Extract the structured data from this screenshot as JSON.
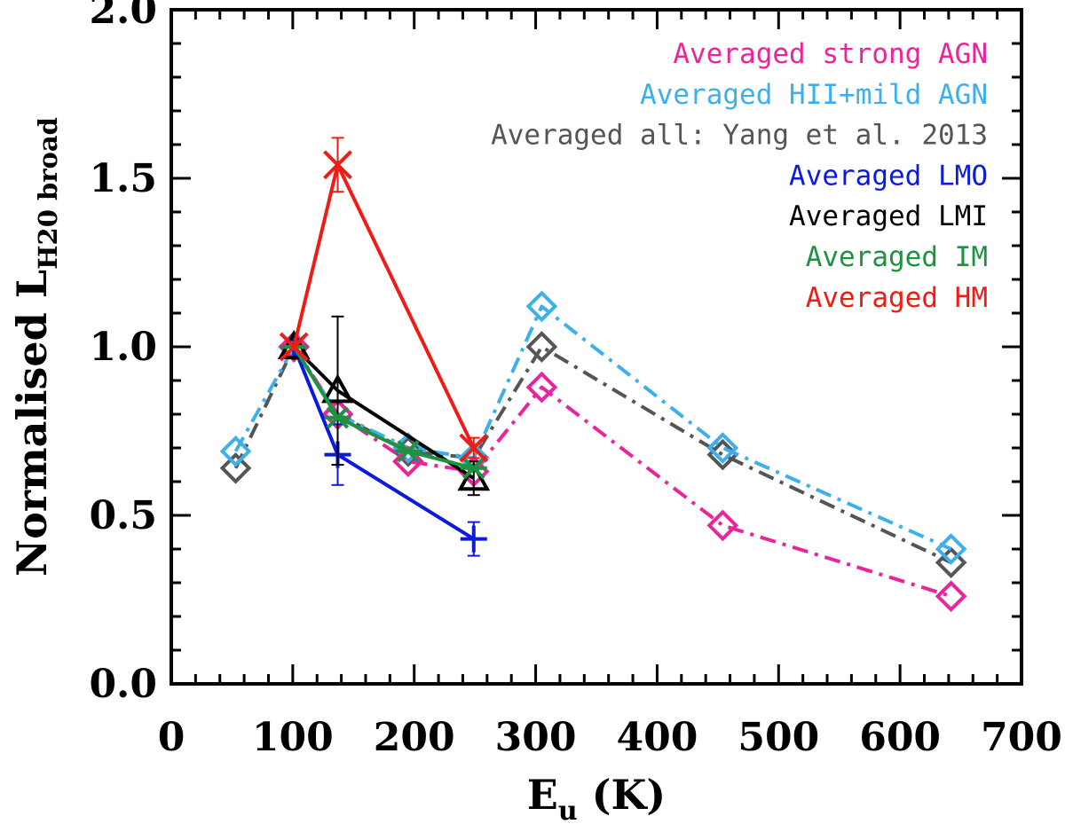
{
  "chart_data": {
    "type": "line",
    "xlabel": {
      "main": "E",
      "sub": "u",
      "unit": " (K)"
    },
    "ylabel": {
      "main": "Normalised L",
      "sub": "H20 broad"
    },
    "xlim": [
      0,
      700
    ],
    "ylim": [
      0.0,
      2.0
    ],
    "xticks": [
      0,
      100,
      200,
      300,
      400,
      500,
      600,
      700
    ],
    "xtick_labels": [
      "0",
      "100",
      "200",
      "300",
      "400",
      "500",
      "600",
      "700"
    ],
    "yticks": [
      0.0,
      0.5,
      1.0,
      1.5,
      2.0
    ],
    "ytick_labels": [
      "0.0",
      "0.5",
      "1.0",
      "1.5",
      "2.0"
    ],
    "x_minor_step": 20,
    "y_minor_step": 0.1,
    "legend_position": "top-right",
    "series": [
      {
        "name": "Averaged all: Yang et al. 2013",
        "color": "#555555",
        "linestyle": "dashdot",
        "marker": "diamond",
        "x": [
          53,
          101,
          137,
          195,
          249,
          305,
          454,
          642
        ],
        "y": [
          0.64,
          1.0,
          0.8,
          0.69,
          0.67,
          1.0,
          0.68,
          0.36
        ]
      },
      {
        "name": "Averaged HII+mild AGN",
        "color": "#3db0ec",
        "linestyle": "dashdot",
        "marker": "diamond",
        "x": [
          53,
          101,
          137,
          195,
          249,
          305,
          454,
          642
        ],
        "y": [
          0.69,
          1.0,
          0.8,
          0.7,
          0.67,
          1.12,
          0.7,
          0.4
        ]
      },
      {
        "name": "Averaged strong AGN",
        "color": "#e8259a",
        "linestyle": "dashdot",
        "marker": "diamond",
        "x": [
          101,
          137,
          195,
          249,
          305,
          454,
          642
        ],
        "y": [
          1.0,
          0.8,
          0.66,
          0.63,
          0.88,
          0.47,
          0.26
        ]
      },
      {
        "name": "Averaged LMO",
        "color": "#0b1adc",
        "linestyle": "solid",
        "marker": "plus",
        "x": [
          101,
          137,
          249
        ],
        "y": [
          1.0,
          0.68,
          0.43
        ],
        "yerr": [
          0,
          0.09,
          0.05
        ]
      },
      {
        "name": "Averaged LMI",
        "color": "#000000",
        "linestyle": "solid",
        "marker": "triangle",
        "x": [
          101,
          137,
          249
        ],
        "y": [
          1.0,
          0.87,
          0.61
        ],
        "yerr": [
          0,
          0.22,
          0.05
        ]
      },
      {
        "name": "Averaged IM",
        "color": "#1c9340",
        "linestyle": "solid",
        "marker": "asterisk",
        "x": [
          101,
          137,
          195,
          249
        ],
        "y": [
          1.0,
          0.79,
          0.69,
          0.64
        ],
        "yerr": [
          0,
          0,
          0,
          0
        ]
      },
      {
        "name": "Averaged HM",
        "color": "#ef1c16",
        "linestyle": "solid",
        "marker": "x",
        "x": [
          101,
          137,
          249
        ],
        "y": [
          1.0,
          1.54,
          0.7
        ],
        "yerr": [
          0,
          0.08,
          0.03
        ]
      }
    ],
    "legend_entries": [
      {
        "label": "Averaged strong AGN",
        "color": "#e8259a"
      },
      {
        "label": "Averaged HII+mild AGN",
        "color": "#3db0ec"
      },
      {
        "label": "Averaged all: Yang et al. 2013",
        "color": "#555555"
      },
      {
        "label": "Averaged LMO",
        "color": "#0b1adc"
      },
      {
        "label": "Averaged LMI",
        "color": "#000000"
      },
      {
        "label": "Averaged IM",
        "color": "#1c9340"
      },
      {
        "label": "Averaged HM",
        "color": "#ef1c16"
      }
    ]
  }
}
